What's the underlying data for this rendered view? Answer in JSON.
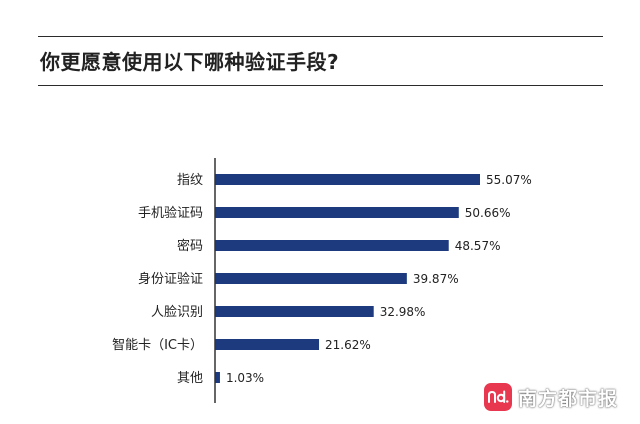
{
  "title": "你更愿意使用以下哪种验证手段?",
  "colors": {
    "bar": "#1c3a7d",
    "axis": "#333333",
    "text": "#222222",
    "brand": "#e8384f"
  },
  "chart_data": {
    "type": "bar",
    "orientation": "horizontal",
    "categories": [
      "指纹",
      "手机验证码",
      "密码",
      "身份证验证",
      "人脸识别",
      "智能卡（IC卡）",
      "其他"
    ],
    "values": [
      55.07,
      50.66,
      48.57,
      39.87,
      32.98,
      21.62,
      1.03
    ],
    "value_labels": [
      "55.07%",
      "50.66%",
      "48.57%",
      "39.87%",
      "32.98%",
      "21.62%",
      "1.03%"
    ],
    "unit": "%",
    "xlim": [
      0,
      100
    ],
    "grid": false,
    "legend": "none"
  },
  "brand": {
    "name": "南方都市报",
    "logo_text": "nd.",
    "logo_icon": "nd-logo-icon"
  }
}
